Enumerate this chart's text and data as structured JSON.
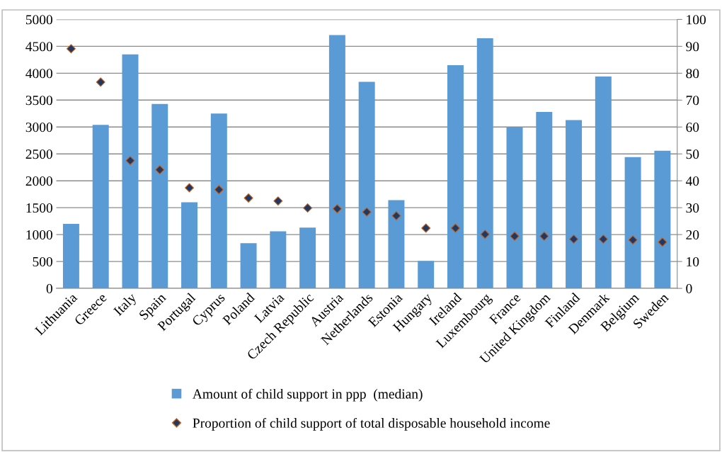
{
  "chart_data": {
    "type": "bar",
    "categories": [
      "Lithuania",
      "Greece",
      "Italy",
      "Spain",
      "Portugal",
      "Cyprus",
      "Poland",
      "Latvia",
      "Czech Republic",
      "Austria",
      "Netherlands",
      "Estonia",
      "Hungary",
      "Ireland",
      "Luxembourg",
      "France",
      "United Kingdom",
      "Finland",
      "Denmark",
      "Belgium",
      "Sweden"
    ],
    "series": [
      {
        "name": "Amount of child support in ppp  (median)",
        "color": "#5b9bd5",
        "values": [
          1200,
          3040,
          4350,
          3430,
          1600,
          3250,
          840,
          1060,
          1130,
          4710,
          3840,
          1640,
          510,
          4150,
          4650,
          2990,
          3280,
          3130,
          3940,
          2440,
          2560
        ]
      },
      {
        "name": "Proportion of child support of total disposable household income",
        "type": "scatter",
        "axis": "y2",
        "marker": "diamond",
        "color": "#1f3864",
        "values": [
          89.1,
          76.7,
          47.5,
          44.1,
          37.4,
          36.7,
          33.6,
          32.5,
          29.9,
          29.6,
          28.4,
          27.0,
          22.4,
          22.4,
          20.1,
          19.4,
          19.4,
          18.3,
          18.3,
          18.0,
          17.2
        ]
      }
    ],
    "ylim": [
      0,
      5000
    ],
    "yticks": [
      0,
      500,
      1000,
      1500,
      2000,
      2500,
      3000,
      3500,
      4000,
      4500,
      5000
    ],
    "y2lim": [
      0,
      100
    ],
    "y2ticks": [
      0,
      10,
      20,
      30,
      40,
      50,
      60,
      70,
      80,
      90,
      100
    ],
    "grid": "y",
    "legend": "bottom"
  }
}
